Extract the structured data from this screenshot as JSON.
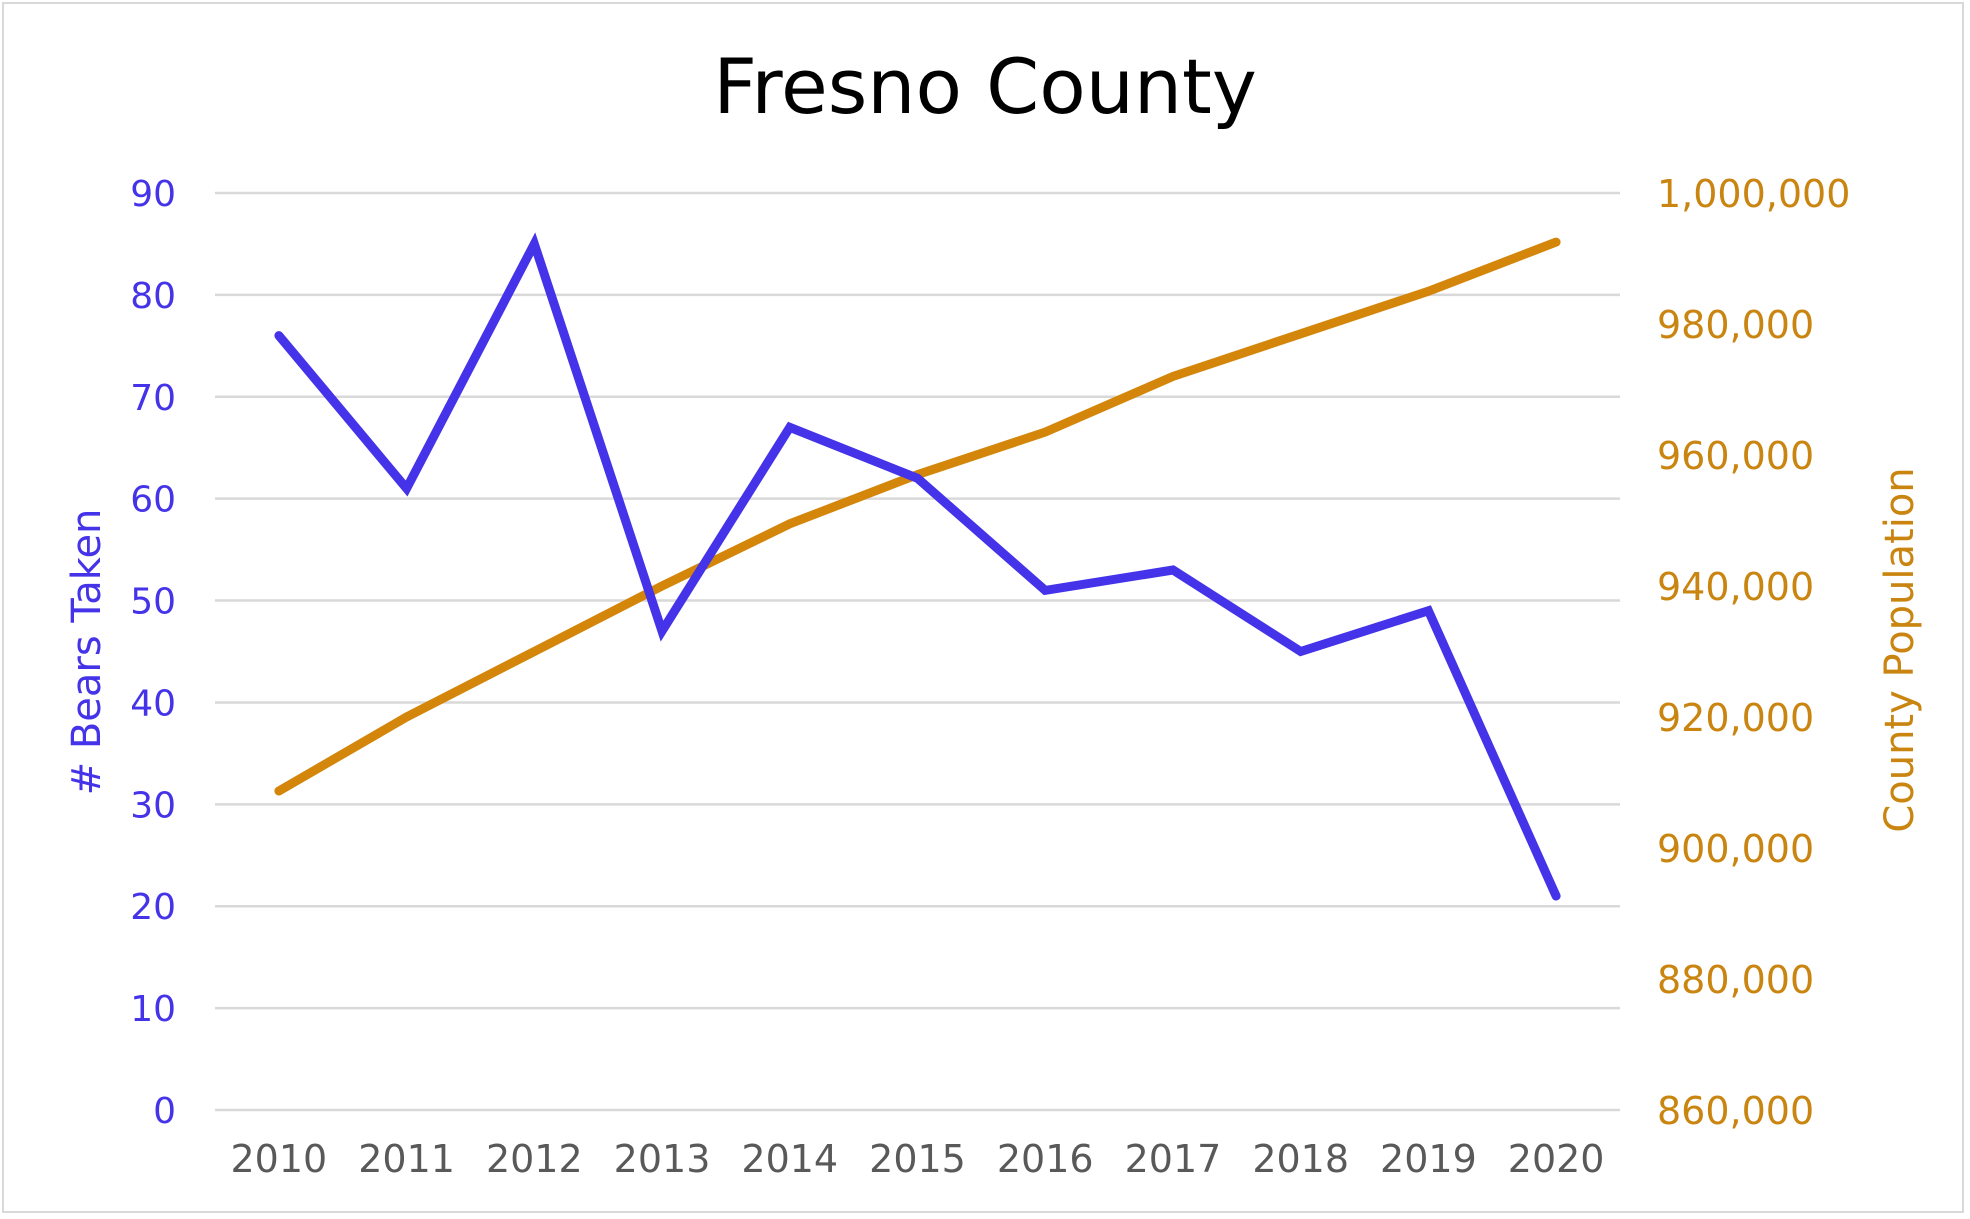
{
  "chart_data": {
    "type": "line",
    "title": "Fresno County",
    "x": [
      "2010",
      "2011",
      "2012",
      "2013",
      "2014",
      "2015",
      "2016",
      "2017",
      "2018",
      "2019",
      "2020"
    ],
    "y_left_label": "# Bears Taken",
    "y_right_label": "County Population",
    "y_left_ticks": [
      "0",
      "10",
      "20",
      "30",
      "40",
      "50",
      "60",
      "70",
      "80",
      "90"
    ],
    "y_right_ticks": [
      "860,000",
      "880,000",
      "900,000",
      "920,000",
      "940,000",
      "960,000",
      "980,000",
      "1,000,000"
    ],
    "y_left_lim": [
      0,
      90
    ],
    "y_right_lim": [
      860000,
      1000000
    ],
    "grid": true,
    "series": [
      {
        "axis": "left",
        "color": "#4433E8",
        "values": [
          76,
          61,
          85,
          47,
          67,
          62,
          51,
          53,
          45,
          49,
          21
        ]
      },
      {
        "axis": "right",
        "color": "#D4860B",
        "values": [
          908700,
          920000,
          930000,
          940000,
          949500,
          957000,
          963500,
          972000,
          978500,
          985000,
          992500
        ]
      }
    ],
    "colors": {
      "left_axis": "#4433E8",
      "right_axis": "#C98510",
      "x_axis": "#595959",
      "grid": "#D9D9D9"
    }
  }
}
